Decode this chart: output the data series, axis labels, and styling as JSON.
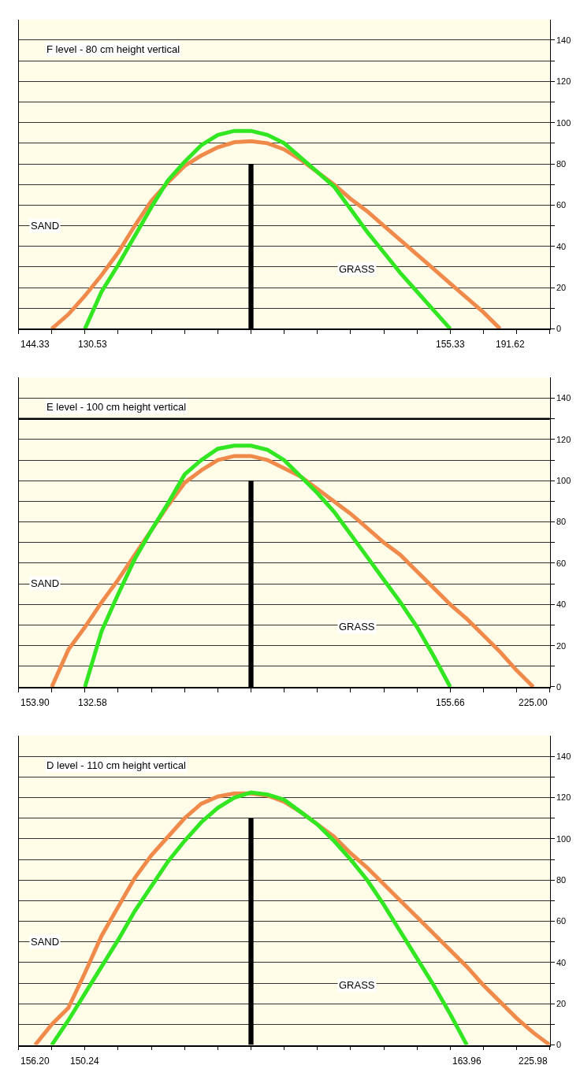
{
  "chart_data": [
    {
      "type": "line",
      "title": "F level - 80 cm height vertical",
      "categories": [
        null,
        null,
        null,
        null,
        null,
        null,
        null,
        null,
        null,
        null,
        null,
        null,
        null,
        null,
        null,
        null,
        null,
        null,
        null,
        null,
        null,
        null,
        null,
        null,
        null,
        null,
        null,
        null,
        null,
        null,
        null,
        null,
        null
      ],
      "ylim": [
        0,
        150
      ],
      "yticks": [
        0,
        {
          "value": 10,
          "label": null
        },
        20,
        {
          "value": 30,
          "label": null
        },
        40,
        {
          "value": 50,
          "label": null
        },
        60,
        {
          "value": 70,
          "label": null
        },
        80,
        {
          "value": 90,
          "label": null
        },
        100,
        {
          "value": 110,
          "label": null
        },
        120,
        {
          "value": 130,
          "label": null
        },
        140
      ],
      "tick_labels": "y",
      "grid": "y",
      "marker": "none",
      "line_style": "solid",
      "series": [
        {
          "color": "#f08a4b",
          "values": [
            null,
            null,
            0,
            7,
            16,
            26,
            37,
            50,
            62,
            71,
            79,
            84,
            88,
            90.5,
            91,
            90,
            87,
            82,
            76,
            70,
            63,
            57,
            50,
            43,
            36,
            29,
            22,
            15,
            8,
            0,
            null,
            null,
            null
          ]
        },
        {
          "color": "#33e622",
          "values": [
            null,
            null,
            null,
            null,
            0,
            18,
            31,
            45,
            59,
            72,
            81,
            89,
            94,
            96,
            96,
            94,
            90,
            83,
            76,
            69,
            58,
            47,
            37,
            27,
            18,
            9,
            0,
            null,
            null,
            null,
            null,
            null,
            null
          ]
        },
        {
          "type": "bar",
          "color": "#000000",
          "values": [
            null,
            null,
            null,
            null,
            null,
            null,
            null,
            null,
            null,
            null,
            null,
            null,
            null,
            null,
            80,
            null,
            null,
            null,
            null,
            null,
            null,
            null,
            null,
            null,
            null,
            null,
            null,
            null,
            null,
            null,
            null,
            null,
            null
          ]
        }
      ],
      "annotations": [
        "SAND",
        "GRASS",
        "144.33",
        "130.53",
        "155.33",
        "191.62"
      ]
    },
    {
      "type": "line",
      "title": "E level - 100 cm height vertical",
      "categories": [
        null,
        null,
        null,
        null,
        null,
        null,
        null,
        null,
        null,
        null,
        null,
        null,
        null,
        null,
        null,
        null,
        null,
        null,
        null,
        null,
        null,
        null,
        null,
        null,
        null,
        null,
        null,
        null,
        null,
        null,
        null,
        null,
        null
      ],
      "ylim": [
        0,
        150
      ],
      "yticks": [
        0,
        {
          "value": 10,
          "label": null
        },
        20,
        {
          "value": 30,
          "label": null
        },
        40,
        {
          "value": 50,
          "label": null
        },
        60,
        {
          "value": 70,
          "label": null
        },
        80,
        {
          "value": 90,
          "label": null
        },
        100,
        {
          "value": 110,
          "label": null
        },
        120,
        {
          "value": 130,
          "label": null
        },
        140
      ],
      "tick_labels": "y",
      "grid": "y",
      "marker": "none",
      "line_style": "solid",
      "series": [
        {
          "color": "#f08a4b",
          "values": [
            null,
            null,
            0,
            18,
            29,
            41,
            52,
            64,
            76,
            88,
            99,
            105,
            110,
            112,
            112,
            110,
            106,
            102,
            96,
            90,
            84,
            77,
            70,
            64,
            56,
            48,
            40,
            33,
            25,
            17,
            8,
            0,
            null
          ]
        },
        {
          "color": "#33e622",
          "values": [
            null,
            null,
            null,
            null,
            0,
            27,
            45,
            62,
            76,
            89,
            103,
            110,
            115.5,
            117,
            117,
            115,
            110,
            102,
            94,
            85,
            74,
            63,
            52,
            41,
            29,
            15,
            0,
            null,
            null,
            null,
            null,
            null,
            null
          ]
        },
        {
          "type": "bar",
          "color": "#000000",
          "values": [
            null,
            null,
            null,
            null,
            null,
            null,
            null,
            null,
            null,
            null,
            null,
            null,
            null,
            null,
            100,
            null,
            null,
            null,
            null,
            null,
            null,
            null,
            null,
            null,
            null,
            null,
            null,
            null,
            null,
            null,
            null,
            null,
            null
          ]
        }
      ],
      "ref_lines": [
        {
          "axis": "y",
          "value": 130,
          "color": "#000000"
        }
      ],
      "annotations": [
        "SAND",
        "GRASS",
        "153.90",
        "132.58",
        "155.66",
        "225.00"
      ]
    },
    {
      "type": "line",
      "title": "D level - 110 cm height vertical",
      "categories": [
        null,
        null,
        null,
        null,
        null,
        null,
        null,
        null,
        null,
        null,
        null,
        null,
        null,
        null,
        null,
        null,
        null,
        null,
        null,
        null,
        null,
        null,
        null,
        null,
        null,
        null,
        null,
        null,
        null,
        null,
        null,
        null,
        null
      ],
      "ylim": [
        0,
        150
      ],
      "yticks": [
        0,
        {
          "value": 10,
          "label": null
        },
        20,
        {
          "value": 30,
          "label": null
        },
        40,
        {
          "value": 50,
          "label": null
        },
        60,
        {
          "value": 70,
          "label": null
        },
        80,
        {
          "value": 90,
          "label": null
        },
        100,
        {
          "value": 110,
          "label": null
        },
        120,
        {
          "value": 130,
          "label": null
        },
        140
      ],
      "tick_labels": "y",
      "grid": "y",
      "marker": "none",
      "line_style": "solid",
      "series": [
        {
          "color": "#f08a4b",
          "values": [
            null,
            0,
            10,
            18,
            35,
            53,
            67,
            81,
            92,
            101,
            110,
            117,
            120.5,
            122,
            122,
            121,
            118,
            113,
            107,
            101,
            93,
            86,
            78,
            70,
            62,
            54,
            46,
            38,
            29,
            21,
            13,
            6,
            0
          ]
        },
        {
          "color": "#33e622",
          "values": [
            null,
            null,
            0,
            12,
            25,
            38,
            51,
            65,
            77,
            89,
            99,
            108,
            115,
            120,
            122.5,
            121.5,
            119,
            113,
            107,
            99,
            90,
            80,
            68,
            55,
            42,
            29,
            15,
            0,
            null,
            null,
            null,
            null,
            null
          ]
        },
        {
          "type": "bar",
          "color": "#000000",
          "values": [
            null,
            null,
            null,
            null,
            null,
            null,
            null,
            null,
            null,
            null,
            null,
            null,
            null,
            null,
            110,
            null,
            null,
            null,
            null,
            null,
            null,
            null,
            null,
            null,
            null,
            null,
            null,
            null,
            null,
            null,
            null,
            null,
            null
          ]
        }
      ],
      "annotations": [
        "SAND",
        "GRASS",
        "156.20",
        "150.24",
        "163.96",
        "225.98"
      ]
    }
  ]
}
